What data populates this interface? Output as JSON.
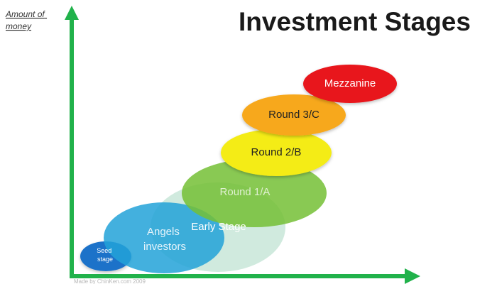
{
  "title": "Investment Stages",
  "y_axis_label": [
    "Amount of",
    "money"
  ],
  "credit": "Made by ChinKen.com 2009",
  "axis_color": "#21b24b",
  "stages": [
    {
      "id": "early-stage",
      "lines": [
        "Early Stage"
      ],
      "fill": "#a9d8c2",
      "opacity": 0.55,
      "text_color": "#ffffff"
    },
    {
      "id": "seed-stage",
      "lines": [
        "Seed",
        "stage"
      ],
      "fill": "#1d72c9",
      "opacity": 1,
      "text_color": "#ffffff"
    },
    {
      "id": "angels-investors",
      "lines": [
        "Angels",
        "investors"
      ],
      "fill": "#22a2d8",
      "opacity": 0.85,
      "text_color": "#e6f4fb"
    },
    {
      "id": "round-1a",
      "lines": [
        "Round 1/A"
      ],
      "fill": "#74bf35",
      "opacity": 0.85,
      "text_color": "#dff0d0"
    },
    {
      "id": "round-2b",
      "lines": [
        "Round 2/B"
      ],
      "fill": "#f4ec18",
      "opacity": 1,
      "text_color": "#222222"
    },
    {
      "id": "round-3c",
      "lines": [
        "Round 3/C"
      ],
      "fill": "#f7a81a",
      "opacity": 1,
      "text_color": "#222222"
    },
    {
      "id": "mezzanine",
      "lines": [
        "Mezzanine"
      ],
      "fill": "#e8161a",
      "opacity": 1,
      "text_color": "#ffffff"
    }
  ]
}
